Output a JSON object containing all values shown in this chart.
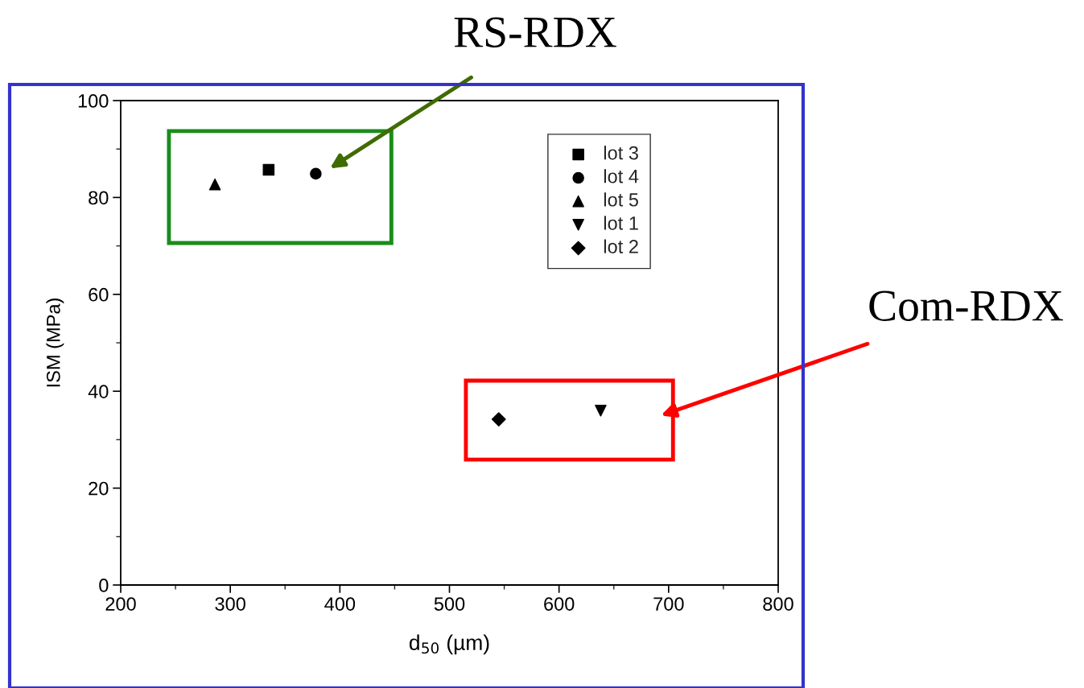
{
  "chart_data": {
    "type": "scatter",
    "xlabel": "d$_{50}$ (µm)",
    "ylabel": "ISM (MPa)",
    "xlim": [
      200,
      800
    ],
    "xticks": [
      200,
      300,
      400,
      500,
      600,
      700,
      800
    ],
    "ylim": [
      0,
      100
    ],
    "yticks": [
      0,
      20,
      40,
      60,
      80,
      100
    ],
    "grid": false,
    "legend": "top right",
    "series": [
      {
        "name": "lot 3",
        "color": "#000000",
        "marker": "square",
        "x": [
          335
        ],
        "values": [
          85.7
        ]
      },
      {
        "name": "lot 4",
        "color": "#000000",
        "marker": "circle",
        "x": [
          378
        ],
        "values": [
          84.9
        ]
      },
      {
        "name": "lot 5",
        "color": "#000000",
        "marker": "triangle",
        "x": [
          286
        ],
        "values": [
          82.7
        ]
      },
      {
        "name": "lot 1",
        "color": "#000000",
        "marker": "triangle_down",
        "x": [
          638
        ],
        "values": [
          36.0
        ]
      },
      {
        "name": "lot 2",
        "color": "#000000",
        "marker": "diamond",
        "x": [
          545
        ],
        "values": [
          34.2
        ]
      }
    ],
    "annotations": [
      "RS-RDX",
      "Com-RDX"
    ]
  }
}
